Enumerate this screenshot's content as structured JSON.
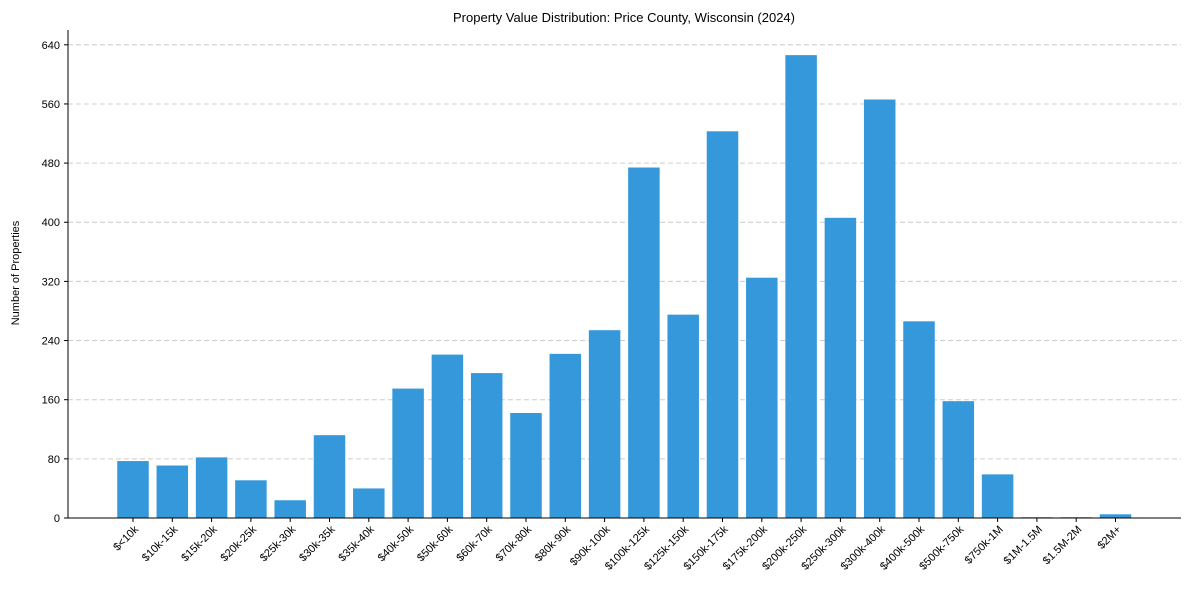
{
  "chart_data": {
    "type": "bar",
    "title": "Property Value Distribution: Price County, Wisconsin (2024)",
    "xlabel": "",
    "ylabel": "Number of Properties",
    "ylim": [
      0,
      660
    ],
    "yticks": [
      0,
      80,
      160,
      240,
      320,
      400,
      480,
      560,
      640
    ],
    "grid": "horizontal dashed",
    "bar_color": "#3498db",
    "categories": [
      "$<10k",
      "$10k-15k",
      "$15k-20k",
      "$20k-25k",
      "$25k-30k",
      "$30k-35k",
      "$35k-40k",
      "$40k-50k",
      "$50k-60k",
      "$60k-70k",
      "$70k-80k",
      "$80k-90k",
      "$90k-100k",
      "$100k-125k",
      "$125k-150k",
      "$150k-175k",
      "$175k-200k",
      "$200k-250k",
      "$250k-300k",
      "$300k-400k",
      "$400k-500k",
      "$500k-750k",
      "$750k-1M",
      "$1M-1.5M",
      "$1.5M-2M",
      "$2M+"
    ],
    "values": [
      77,
      71,
      82,
      51,
      24,
      112,
      40,
      175,
      221,
      196,
      142,
      222,
      254,
      474,
      275,
      523,
      325,
      626,
      406,
      566,
      266,
      158,
      59,
      1,
      1,
      5
    ]
  }
}
